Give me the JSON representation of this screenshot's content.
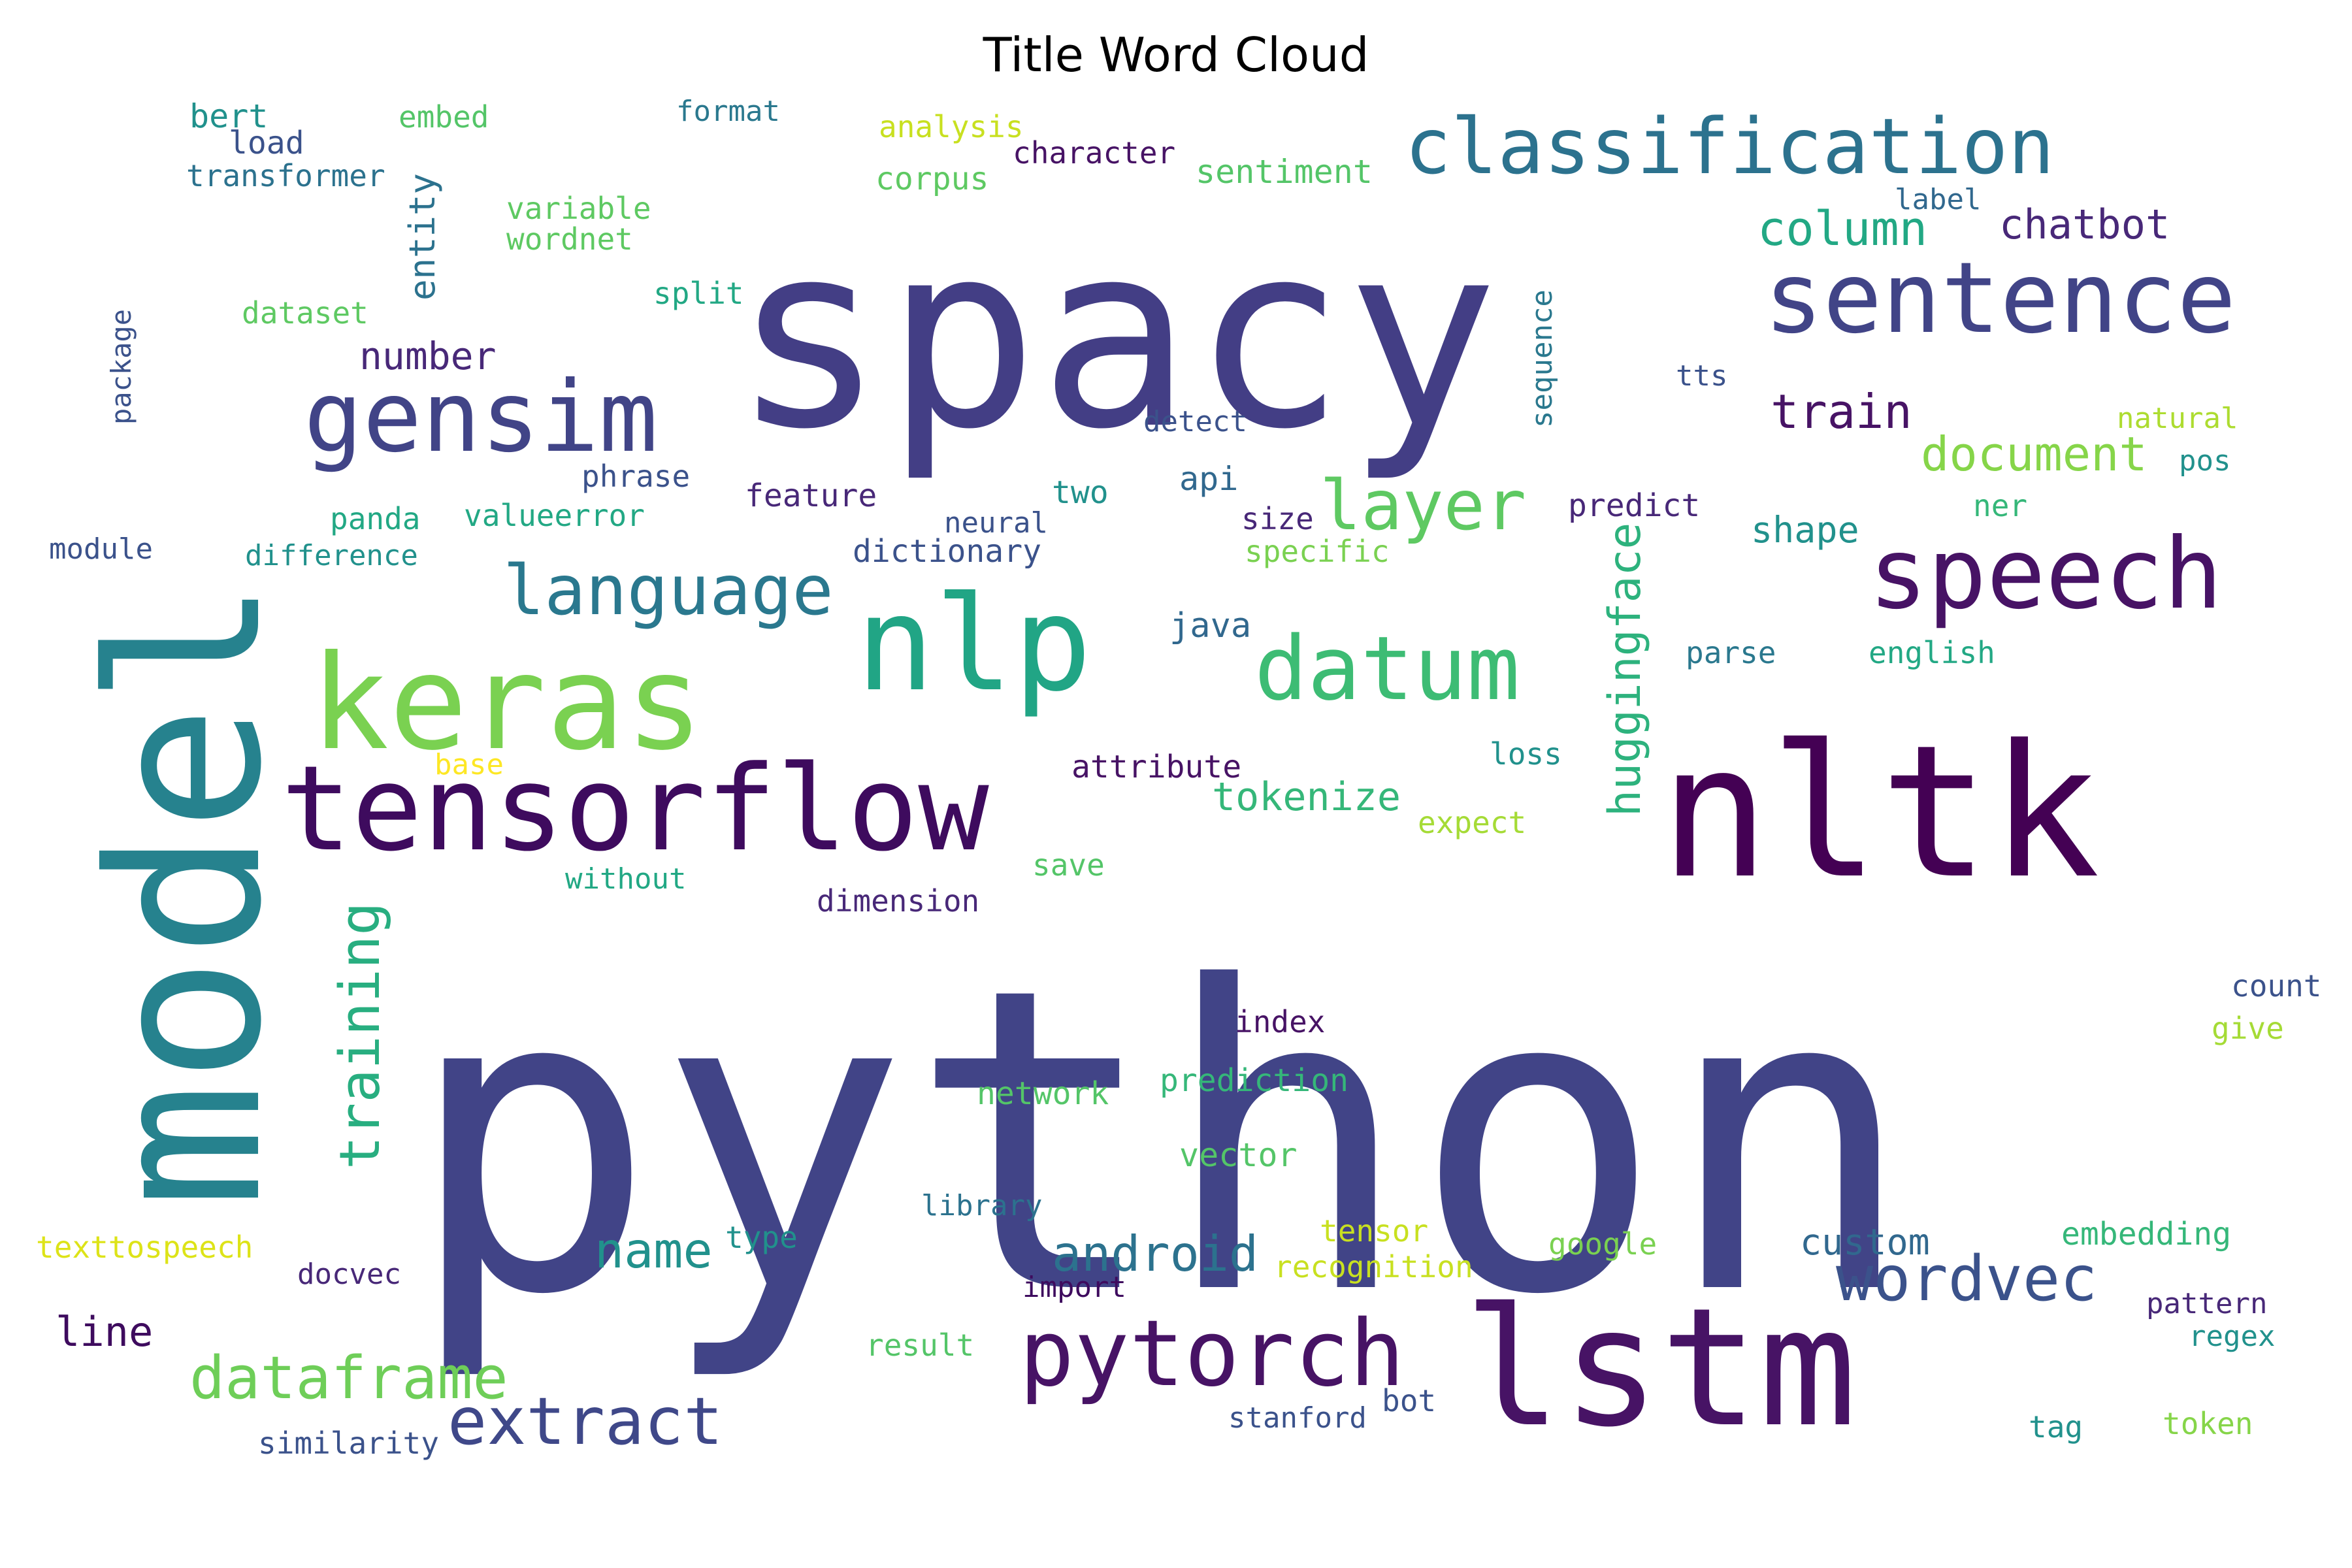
{
  "chart_data": {
    "type": "word_cloud",
    "title": "Title Word Cloud",
    "words": [
      {
        "text": "python",
        "color": "#414487"
      },
      {
        "text": "spacy",
        "color": "#433e85"
      },
      {
        "text": "nltk",
        "color": "#440154"
      },
      {
        "text": "model",
        "color": "#26828e"
      },
      {
        "text": "lstm",
        "color": "#471365"
      },
      {
        "text": "keras",
        "color": "#7ad151"
      },
      {
        "text": "nlp",
        "color": "#21a585"
      },
      {
        "text": "tensorflow",
        "color": "#3e0b5e"
      },
      {
        "text": "classification",
        "color": "#2c728e"
      },
      {
        "text": "sentence",
        "color": "#414487"
      },
      {
        "text": "speech",
        "color": "#471365"
      },
      {
        "text": "gensim",
        "color": "#414487"
      },
      {
        "text": "pytorch",
        "color": "#471365"
      },
      {
        "text": "datum",
        "color": "#3dbc74"
      },
      {
        "text": "language",
        "color": "#2a788e"
      },
      {
        "text": "extract",
        "color": "#3f4889"
      },
      {
        "text": "layer",
        "color": "#5ec962"
      },
      {
        "text": "dataframe",
        "color": "#6ece58"
      },
      {
        "text": "wordvec",
        "color": "#3b528b"
      },
      {
        "text": "training",
        "color": "#28ae80"
      },
      {
        "text": "huggingface",
        "color": "#2db27d"
      },
      {
        "text": "name",
        "color": "#21918c"
      },
      {
        "text": "android",
        "color": "#2c728e"
      },
      {
        "text": "column",
        "color": "#22a884"
      },
      {
        "text": "document",
        "color": "#86d549"
      },
      {
        "text": "train",
        "color": "#471365"
      },
      {
        "text": "chatbot",
        "color": "#482878"
      },
      {
        "text": "tokenize",
        "color": "#35b779"
      },
      {
        "text": "line",
        "color": "#3e0b5e"
      },
      {
        "text": "number",
        "color": "#482878"
      },
      {
        "text": "entity",
        "color": "#2c728e"
      },
      {
        "text": "custom",
        "color": "#31688e"
      },
      {
        "text": "shape",
        "color": "#21918c"
      },
      {
        "text": "sentiment",
        "color": "#54c568"
      },
      {
        "text": "bert",
        "color": "#21918c"
      },
      {
        "text": "embed",
        "color": "#54c568"
      },
      {
        "text": "format",
        "color": "#2a788e"
      },
      {
        "text": "analysis",
        "color": "#c8e020"
      },
      {
        "text": "character",
        "color": "#471365"
      },
      {
        "text": "load",
        "color": "#3b528b"
      },
      {
        "text": "transformer",
        "color": "#2c728e"
      },
      {
        "text": "corpus",
        "color": "#5ec962"
      },
      {
        "text": "variable",
        "color": "#5ec962"
      },
      {
        "text": "wordnet",
        "color": "#5ec962"
      },
      {
        "text": "label",
        "color": "#31688e"
      },
      {
        "text": "dataset",
        "color": "#5ec962"
      },
      {
        "text": "split",
        "color": "#22a884"
      },
      {
        "text": "sequence",
        "color": "#2a788e"
      },
      {
        "text": "tts",
        "color": "#3b528b"
      },
      {
        "text": "package",
        "color": "#3b528b"
      },
      {
        "text": "detect",
        "color": "#3b528b"
      },
      {
        "text": "natural",
        "color": "#addc30"
      },
      {
        "text": "pos",
        "color": "#21918c"
      },
      {
        "text": "api",
        "color": "#31688e"
      },
      {
        "text": "phrase",
        "color": "#3b528b"
      },
      {
        "text": "two",
        "color": "#21918c"
      },
      {
        "text": "feature",
        "color": "#482878"
      },
      {
        "text": "predict",
        "color": "#482878"
      },
      {
        "text": "ner",
        "color": "#35b779"
      },
      {
        "text": "panda",
        "color": "#22a884"
      },
      {
        "text": "valueerror",
        "color": "#22a884"
      },
      {
        "text": "neural",
        "color": "#3b528b"
      },
      {
        "text": "size",
        "color": "#482878"
      },
      {
        "text": "module",
        "color": "#3b528b"
      },
      {
        "text": "difference",
        "color": "#21918c"
      },
      {
        "text": "dictionary",
        "color": "#3b528b"
      },
      {
        "text": "specific",
        "color": "#7ad151"
      },
      {
        "text": "java",
        "color": "#31688e"
      },
      {
        "text": "parse",
        "color": "#2a788e"
      },
      {
        "text": "english",
        "color": "#22a884"
      },
      {
        "text": "attribute",
        "color": "#471365"
      },
      {
        "text": "base",
        "color": "#fde725"
      },
      {
        "text": "loss",
        "color": "#21918c"
      },
      {
        "text": "expect",
        "color": "#a5db36"
      },
      {
        "text": "without",
        "color": "#22a884"
      },
      {
        "text": "save",
        "color": "#54c568"
      },
      {
        "text": "dimension",
        "color": "#482878"
      },
      {
        "text": "count",
        "color": "#3b528b"
      },
      {
        "text": "index",
        "color": "#471365"
      },
      {
        "text": "give",
        "color": "#a5db36"
      },
      {
        "text": "network",
        "color": "#54c568"
      },
      {
        "text": "prediction",
        "color": "#35b779"
      },
      {
        "text": "vector",
        "color": "#54c568"
      },
      {
        "text": "library",
        "color": "#2c728e"
      },
      {
        "text": "texttospeech",
        "color": "#dde318"
      },
      {
        "text": "type",
        "color": "#21918c"
      },
      {
        "text": "tensor",
        "color": "#c8e020"
      },
      {
        "text": "google",
        "color": "#7ad151"
      },
      {
        "text": "embedding",
        "color": "#35b779"
      },
      {
        "text": "docvec",
        "color": "#482878"
      },
      {
        "text": "recognition",
        "color": "#c8e020"
      },
      {
        "text": "import",
        "color": "#3e0b5e"
      },
      {
        "text": "pattern",
        "color": "#482878"
      },
      {
        "text": "regex",
        "color": "#21918c"
      },
      {
        "text": "result",
        "color": "#54c568"
      },
      {
        "text": "stanford",
        "color": "#3b528b"
      },
      {
        "text": "bot",
        "color": "#3b528b"
      },
      {
        "text": "tag",
        "color": "#21918c"
      },
      {
        "text": "token",
        "color": "#86d549"
      },
      {
        "text": "similarity",
        "color": "#3b528b"
      }
    ]
  }
}
